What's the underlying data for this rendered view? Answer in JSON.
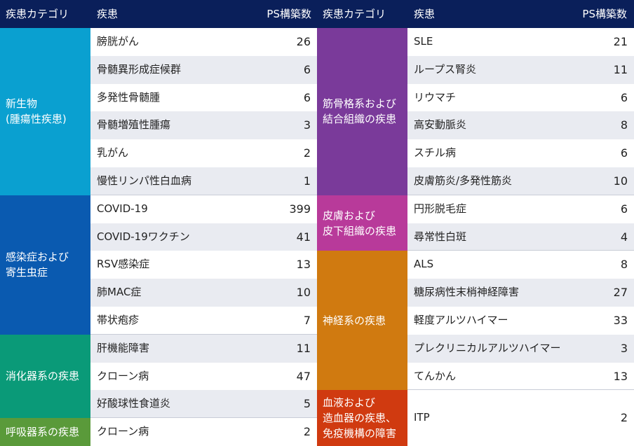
{
  "header": {
    "category": "疾患カテゴリ",
    "disease": "疾患",
    "count": "PS構築数"
  },
  "colors": {
    "header_bg": "#0a1f5a",
    "neoplasm": "#0aa0d0",
    "infection": "#0a5ab0",
    "digestive": "#0a9a78",
    "respiratory": "#5a9a3a",
    "musculoskeletal": "#7a3a9a",
    "skin": "#b83a9a",
    "nervous": "#d07a10",
    "blood": "#d03a10"
  },
  "left": {
    "categories": [
      {
        "label": "新生物\n(腫瘍性疾患)",
        "color": "#0aa0d0",
        "rows": 6
      },
      {
        "label": "感染症および\n寄生虫症",
        "color": "#0a5ab0",
        "rows": 5
      },
      {
        "label": "消化器系の疾患",
        "color": "#0a9a78",
        "rows": 3
      },
      {
        "label": "呼吸器系の疾患",
        "color": "#5a9a3a",
        "rows": 1
      }
    ],
    "rows": [
      {
        "name": "膀胱がん",
        "count": "26"
      },
      {
        "name": "骨髄異形成症候群",
        "count": "6"
      },
      {
        "name": "多発性骨髄腫",
        "count": "6"
      },
      {
        "name": "骨髄増殖性腫瘍",
        "count": "3"
      },
      {
        "name": "乳がん",
        "count": "2"
      },
      {
        "name": "慢性リンパ性白血病",
        "count": "1"
      },
      {
        "name": "COVID-19",
        "count": "399"
      },
      {
        "name": "COVID-19ワクチン",
        "count": "41"
      },
      {
        "name": "RSV感染症",
        "count": "13"
      },
      {
        "name": "肺MAC症",
        "count": "10"
      },
      {
        "name": "帯状疱疹",
        "count": "7"
      },
      {
        "name": "肝機能障害",
        "count": "11"
      },
      {
        "name": "クローン病",
        "count": "47"
      },
      {
        "name": "好酸球性食道炎",
        "count": "5"
      },
      {
        "name": "クローン病",
        "count": "2"
      }
    ]
  },
  "right": {
    "categories": [
      {
        "label": "筋骨格系および\n結合組織の疾患",
        "color": "#7a3a9a",
        "rows": 6
      },
      {
        "label": "皮膚および\n皮下組織の疾患",
        "color": "#b83a9a",
        "rows": 2
      },
      {
        "label": "神経系の疾患",
        "color": "#d07a10",
        "rows": 5
      },
      {
        "label": "血液および\n造血器の疾患、\n免疫機構の障害",
        "color": "#d03a10",
        "rows": 2
      }
    ],
    "rows": [
      {
        "name": "SLE",
        "count": "21"
      },
      {
        "name": "ループス腎炎",
        "count": "11"
      },
      {
        "name": "リウマチ",
        "count": "6"
      },
      {
        "name": "高安動脈炎",
        "count": "8"
      },
      {
        "name": "スチル病",
        "count": "6"
      },
      {
        "name": "皮膚筋炎/多発性筋炎",
        "count": "10"
      },
      {
        "name": "円形脱毛症",
        "count": "6"
      },
      {
        "name": "尋常性白斑",
        "count": "4"
      },
      {
        "name": "ALS",
        "count": "8"
      },
      {
        "name": "糖尿病性末梢神経障害",
        "count": "27"
      },
      {
        "name": "軽度アルツハイマー",
        "count": "33"
      },
      {
        "name": "プレクリニカルアルツハイマー",
        "count": "3"
      },
      {
        "name": "てんかん",
        "count": "13"
      },
      {
        "name": "ITP",
        "count": "2",
        "span": 2
      }
    ]
  }
}
